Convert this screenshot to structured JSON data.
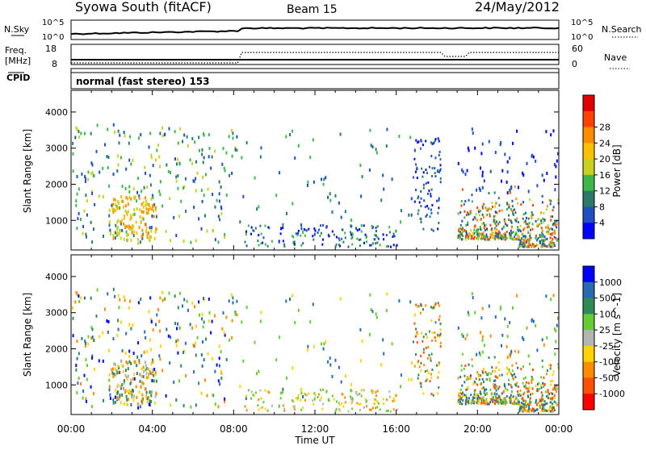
{
  "header": {
    "station": "Syowa South (fitACF)",
    "beam": "Beam 15",
    "date": "24/May/2012"
  },
  "summary_panels": {
    "nsky_label": "N.Sky",
    "nsky_ticks": [
      "10^5",
      "10^0"
    ],
    "nsearch_label": "N.Search",
    "nsearch_ticks": [
      "10^5",
      "10^0"
    ],
    "freq_label": "Freq.",
    "freq_unit": "[MHz]",
    "freq_ticks": [
      "18",
      "8"
    ],
    "nave_label": "Nave",
    "nave_ticks": [
      "60",
      "0"
    ],
    "cpid_label": "CPID",
    "cpid_text": "normal (fast stereo) 153"
  },
  "chart_data": [
    {
      "type": "heatmap",
      "name": "power",
      "ylabel": "Slant Range [km]",
      "xlabel": "",
      "xlim": [
        0,
        24
      ],
      "ylim": [
        180,
        4600
      ],
      "yticks": [
        "1000",
        "2000",
        "3000",
        "4000"
      ],
      "colorbar": {
        "label": "Power [dB]",
        "ticks": [
          "4",
          "8",
          "12",
          "16",
          "20",
          "24",
          "28"
        ],
        "colors": [
          "#0000ff",
          "#1f4fc0",
          "#2a7a6a",
          "#3cb84a",
          "#c8d21e",
          "#ffc000",
          "#ff8c00",
          "#ff4000",
          "#e00000"
        ]
      }
    },
    {
      "type": "heatmap",
      "name": "velocity",
      "ylabel": "Slant Range [km]",
      "xlabel": "Time UT",
      "xlim": [
        0,
        24
      ],
      "ylim": [
        180,
        4600
      ],
      "yticks": [
        "1000",
        "2000",
        "3000",
        "4000"
      ],
      "xticks": [
        "00:00",
        "04:00",
        "08:00",
        "12:00",
        "16:00",
        "20:00",
        "00:00"
      ],
      "colorbar": {
        "label": "Velocity [m s^-1]",
        "ticks": [
          "1000",
          "500",
          "100",
          "25",
          "-25",
          "-100",
          "-500",
          "-1000"
        ],
        "colors": [
          "#0000ff",
          "#2a6ab0",
          "#2e8b57",
          "#66cc33",
          "#b4b4b4",
          "#ffd200",
          "#ff8c00",
          "#ff5000",
          "#ff0000"
        ]
      }
    }
  ]
}
